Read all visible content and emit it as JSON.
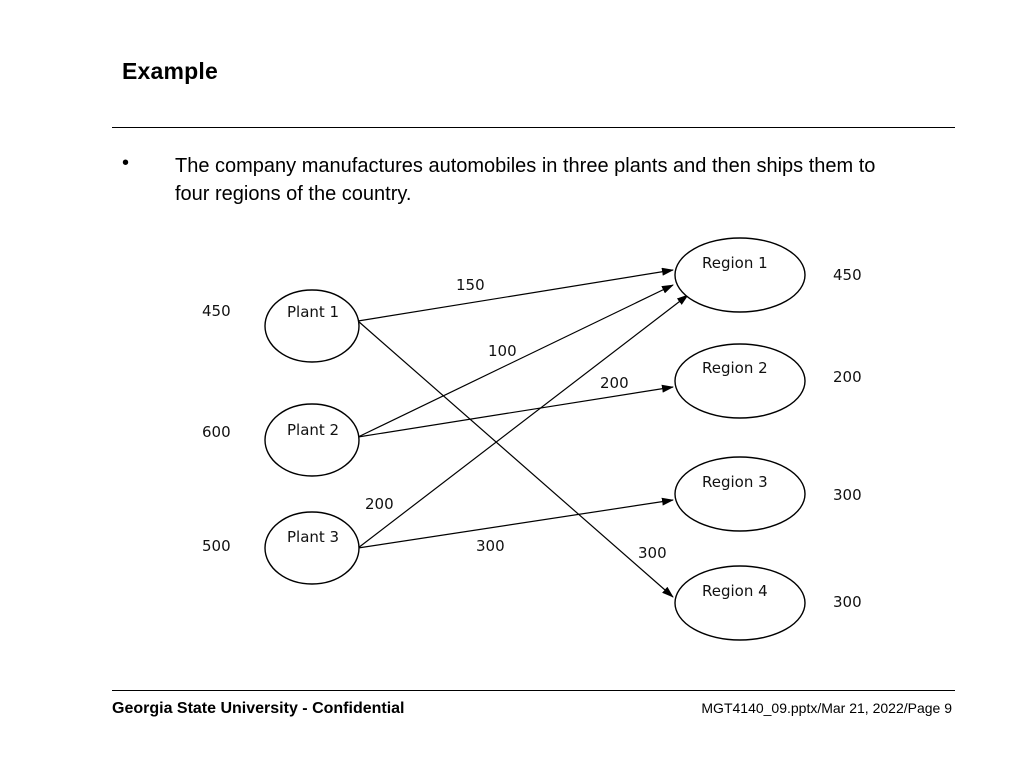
{
  "slide": {
    "title": "Example",
    "bullet_marker": "•",
    "bullet_text": "The company manufactures automobiles in three plants and then ships them to four regions of the country."
  },
  "diagram": {
    "plants": [
      {
        "label": "Plant 1",
        "supply": "450"
      },
      {
        "label": "Plant 2",
        "supply": "600"
      },
      {
        "label": "Plant 3",
        "supply": "500"
      }
    ],
    "regions": [
      {
        "label": "Region 1",
        "demand": "450"
      },
      {
        "label": "Region 2",
        "demand": "200"
      },
      {
        "label": "Region 3",
        "demand": "300"
      },
      {
        "label": "Region 4",
        "demand": "300"
      }
    ],
    "routes": [
      {
        "from": "Plant 1",
        "to": "Region 1",
        "quantity": "150"
      },
      {
        "from": "Plant 1",
        "to": "Region 4",
        "quantity": "300"
      },
      {
        "from": "Plant 2",
        "to": "Region 1",
        "quantity": "100"
      },
      {
        "from": "Plant 2",
        "to": "Region 2",
        "quantity": "200"
      },
      {
        "from": "Plant 3",
        "to": "Region 1",
        "quantity": "200"
      },
      {
        "from": "Plant 3",
        "to": "Region 3",
        "quantity": "300"
      }
    ]
  },
  "footer": {
    "left": "Georgia State University - Confidential",
    "right": "MGT4140_09.pptx/Mar 21, 2022/Page 9"
  }
}
